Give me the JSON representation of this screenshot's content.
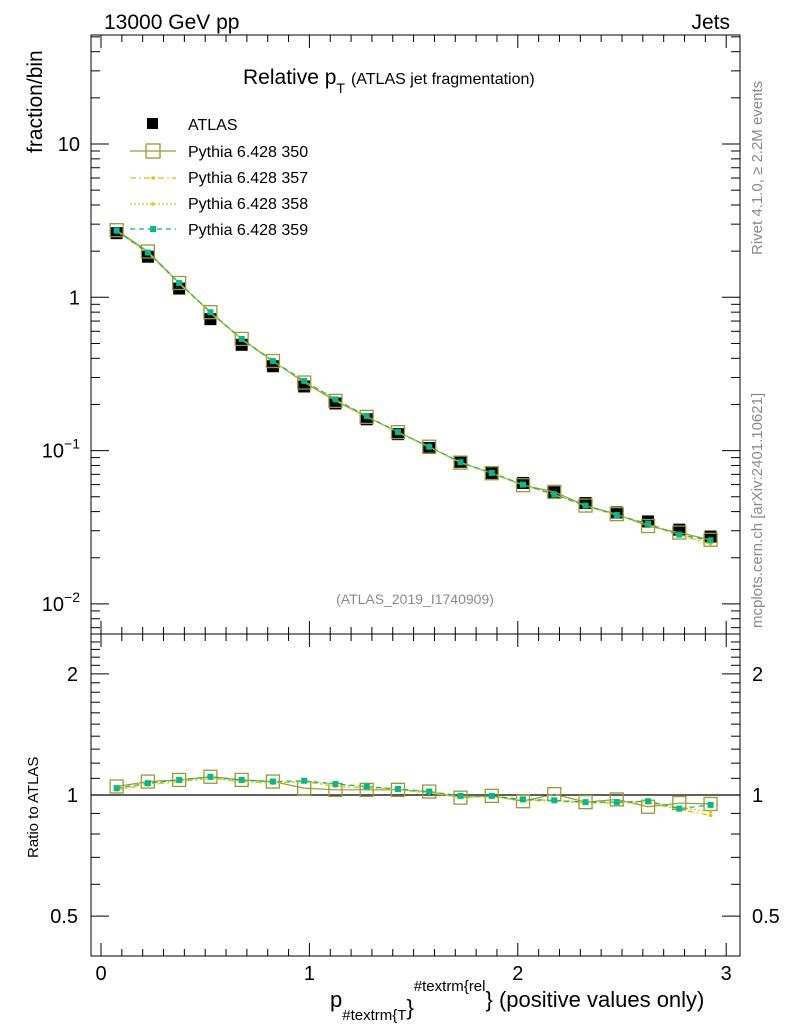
{
  "header": {
    "energy_label": "13000 GeV pp",
    "process_label": "Jets",
    "title_main": "Relative p",
    "title_sub": "T",
    "title_rest": "(ATLAS jet fragmentation)",
    "side_label_top": "Rivet 4.1.0, ≥ 2.2M events",
    "side_label_bottom": "mcplots.cern.ch [arXiv:2401.10621]",
    "analysis_id": "(ATLAS_2019_I1740909)"
  },
  "axes": {
    "main_ylabel": "fraction/bin",
    "ratio_ylabel": "Ratio to ATLAS",
    "xlabel_p": "p",
    "xlabel_sub": "#textrm{T",
    "xlabel_sup": "#textrm{rel",
    "xlabel_rest": "} (positive values only)",
    "xlabel_brace": "}",
    "x_ticks": [
      "0",
      "1",
      "2",
      "3"
    ],
    "main_y_ticks": [
      {
        "base": "10",
        "exp": "",
        "value": 10
      },
      {
        "base": "1",
        "exp": "",
        "value": 1
      },
      {
        "base": "10",
        "exp": "−1",
        "value": 0.1
      },
      {
        "base": "10",
        "exp": "−2",
        "value": 0.01
      }
    ],
    "ratio_y_ticks": [
      "2",
      "1",
      "0.5"
    ]
  },
  "legend": {
    "atlas": "ATLAS",
    "p350": "Pythia 6.428 350",
    "p357": "Pythia 6.428 357",
    "p358": "Pythia 6.428 358",
    "p359": "Pythia 6.428 359"
  },
  "colors": {
    "atlas": "#000000",
    "p350": "#999933",
    "p357": "#e6c200",
    "p358": "#cccc00",
    "p359": "#00bb88"
  },
  "chart_data": [
    {
      "type": "scatter",
      "title": "Relative pT (ATLAS jet fragmentation)",
      "xlabel": "p_T^rel (positive values only)",
      "ylabel": "fraction/bin",
      "yscale": "log",
      "xlim": [
        -0.05,
        3.05
      ],
      "ylim": [
        0.006,
        50
      ],
      "x": [
        0.075,
        0.225,
        0.375,
        0.525,
        0.675,
        0.825,
        0.975,
        1.125,
        1.275,
        1.425,
        1.575,
        1.725,
        1.875,
        2.025,
        2.175,
        2.325,
        2.475,
        2.625,
        2.775,
        2.925
      ],
      "series": [
        {
          "name": "ATLAS",
          "values": [
            2.62,
            1.84,
            1.14,
            0.72,
            0.49,
            0.355,
            0.262,
            0.203,
            0.16,
            0.128,
            0.104,
            0.0845,
            0.0715,
            0.0615,
            0.0535,
            0.0455,
            0.0395,
            0.0345,
            0.0305,
            0.0275
          ]
        },
        {
          "name": "Pythia 6.428 350",
          "values": [
            2.74,
            1.99,
            1.24,
            0.8,
            0.535,
            0.384,
            0.278,
            0.211,
            0.166,
            0.132,
            0.106,
            0.0835,
            0.0712,
            0.0595,
            0.0538,
            0.0438,
            0.0385,
            0.0322,
            0.0292,
            0.0262
          ]
        },
        {
          "name": "Pythia 6.428 357",
          "values": [
            2.7,
            1.95,
            1.23,
            0.79,
            0.53,
            0.38,
            0.283,
            0.214,
            0.167,
            0.131,
            0.105,
            0.0835,
            0.071,
            0.0598,
            0.0515,
            0.0435,
            0.0378,
            0.033,
            0.028,
            0.0245
          ]
        },
        {
          "name": "Pythia 6.428 358",
          "values": [
            2.71,
            1.96,
            1.24,
            0.795,
            0.532,
            0.382,
            0.284,
            0.215,
            0.168,
            0.132,
            0.106,
            0.0838,
            0.0712,
            0.06,
            0.0518,
            0.0438,
            0.038,
            0.0333,
            0.0283,
            0.025
          ]
        },
        {
          "name": "Pythia 6.428 359",
          "values": [
            2.72,
            1.96,
            1.24,
            0.8,
            0.535,
            0.384,
            0.285,
            0.216,
            0.168,
            0.132,
            0.106,
            0.084,
            0.0715,
            0.06,
            0.0518,
            0.0438,
            0.038,
            0.0333,
            0.0283,
            0.026
          ]
        }
      ]
    },
    {
      "type": "line",
      "title": "Ratio to ATLAS",
      "ylabel": "Ratio to ATLAS",
      "yscale": "log",
      "xlim": [
        -0.05,
        3.05
      ],
      "ylim": [
        0.4,
        2.45
      ],
      "reference": 1.0,
      "x": [
        0.075,
        0.225,
        0.375,
        0.525,
        0.675,
        0.825,
        0.975,
        1.125,
        1.275,
        1.425,
        1.575,
        1.725,
        1.875,
        2.025,
        2.175,
        2.325,
        2.475,
        2.625,
        2.775,
        2.925
      ],
      "series": [
        {
          "name": "Pythia 6.428 350",
          "values": [
            1.05,
            1.08,
            1.09,
            1.11,
            1.09,
            1.08,
            1.04,
            1.03,
            1.03,
            1.03,
            1.02,
            0.985,
            0.995,
            0.965,
            1.005,
            0.96,
            0.975,
            0.935,
            0.955,
            0.95
          ]
        },
        {
          "name": "Pythia 6.428 357",
          "values": [
            1.03,
            1.06,
            1.08,
            1.1,
            1.08,
            1.07,
            1.08,
            1.05,
            1.04,
            1.03,
            1.01,
            0.99,
            0.99,
            0.97,
            0.965,
            0.955,
            0.955,
            0.955,
            0.92,
            0.89
          ]
        },
        {
          "name": "Pythia 6.428 358",
          "values": [
            1.035,
            1.065,
            1.09,
            1.1,
            1.085,
            1.075,
            1.08,
            1.06,
            1.05,
            1.03,
            1.02,
            0.99,
            0.99,
            0.975,
            0.97,
            0.96,
            0.96,
            0.965,
            0.93,
            0.91
          ]
        },
        {
          "name": "Pythia 6.428 359",
          "values": [
            1.04,
            1.07,
            1.09,
            1.11,
            1.09,
            1.08,
            1.085,
            1.065,
            1.05,
            1.035,
            1.02,
            0.995,
            0.995,
            0.975,
            0.97,
            0.96,
            0.96,
            0.965,
            0.925,
            0.945
          ]
        }
      ]
    }
  ]
}
